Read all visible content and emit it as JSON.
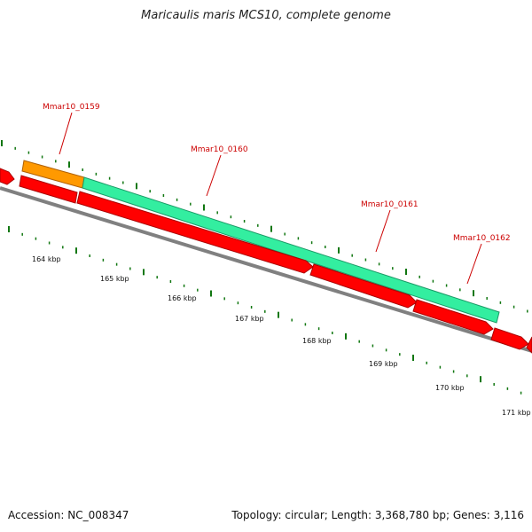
{
  "title": "Maricaulis maris MCS10, complete genome",
  "footer": {
    "accession": "Accession: NC_008347",
    "stats": "Topology: circular; Length: 3,368,780 bp; Genes: 3,116"
  },
  "colors": {
    "cds": "#ff0000",
    "cds_edge": "#aa0000",
    "highlight_green": "#33eea0",
    "highlight_orange": "#ff9900",
    "backbone": "#888888",
    "tick": "#117711",
    "label": "#cc0000"
  },
  "gene_labels": [
    {
      "id": "label-0159",
      "text": "Mmar10_0159"
    },
    {
      "id": "label-0160",
      "text": "Mmar10_0160"
    },
    {
      "id": "label-0161",
      "text": "Mmar10_0161"
    },
    {
      "id": "label-0162",
      "text": "Mmar10_0162"
    }
  ],
  "kbp_labels": [
    "164 kbp",
    "165 kbp",
    "166 kbp",
    "167 kbp",
    "168 kbp",
    "169 kbp",
    "170 kbp",
    "171 kbp"
  ]
}
